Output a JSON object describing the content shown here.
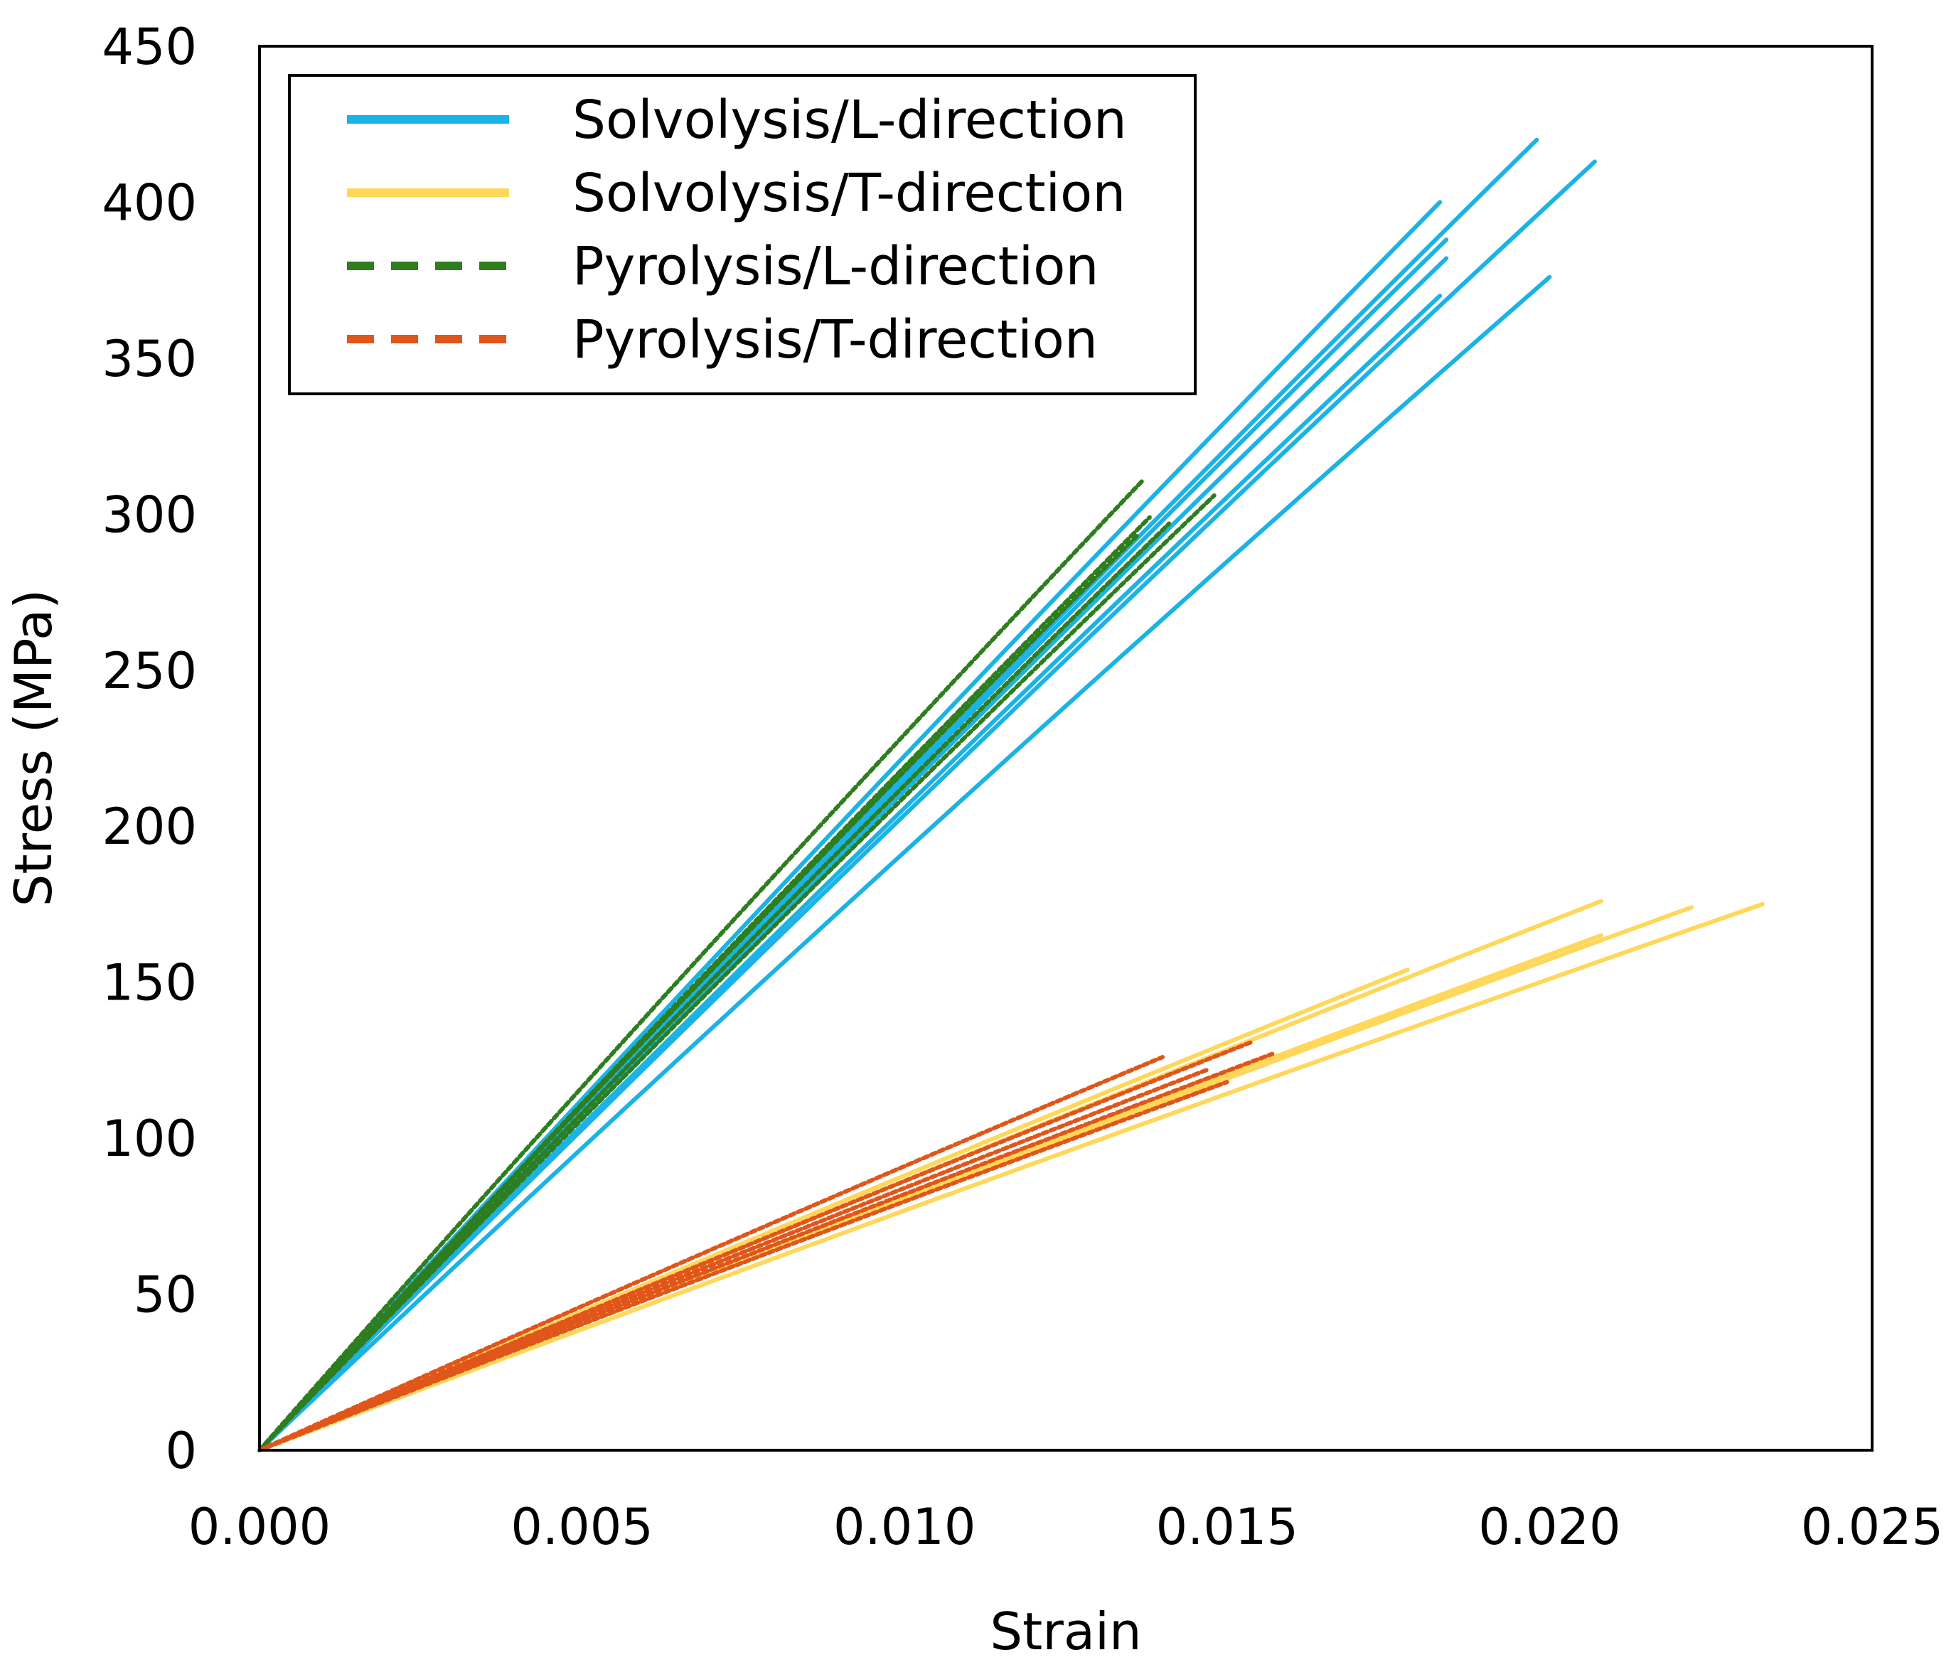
{
  "chart_data": {
    "type": "line",
    "title": "",
    "xlabel": "Strain",
    "ylabel": "Stress (MPa)",
    "xlim": [
      0,
      0.025
    ],
    "ylim": [
      0,
      450
    ],
    "xticks": [
      "0.000",
      "0.005",
      "0.010",
      "0.015",
      "0.020",
      "0.025"
    ],
    "yticks": [
      "0",
      "50",
      "100",
      "150",
      "200",
      "250",
      "300",
      "350",
      "400",
      "450"
    ],
    "grid": false,
    "legend_position": "top-left",
    "series": [
      {
        "name": "Solvolysis/L-direction",
        "color": "#1BB3E6",
        "style": "solid",
        "curves": [
          {
            "strain_end": 0.0183,
            "stress_end": 400
          },
          {
            "strain_end": 0.0198,
            "stress_end": 420
          },
          {
            "strain_end": 0.0207,
            "stress_end": 413
          },
          {
            "strain_end": 0.0184,
            "stress_end": 388
          },
          {
            "strain_end": 0.0184,
            "stress_end": 382
          },
          {
            "strain_end": 0.0183,
            "stress_end": 370
          },
          {
            "strain_end": 0.02,
            "stress_end": 376
          }
        ]
      },
      {
        "name": "Solvolysis/T-direction",
        "color": "#FFD75A",
        "style": "solid",
        "curves": [
          {
            "strain_end": 0.0208,
            "stress_end": 176
          },
          {
            "strain_end": 0.0222,
            "stress_end": 174
          },
          {
            "strain_end": 0.0233,
            "stress_end": 175
          },
          {
            "strain_end": 0.0208,
            "stress_end": 165
          },
          {
            "strain_end": 0.0178,
            "stress_end": 154
          }
        ]
      },
      {
        "name": "Pyrolysis/L-direction",
        "color": "#2E7D1E",
        "style": "dashed",
        "curves": [
          {
            "strain_end": 0.0137,
            "stress_end": 311
          },
          {
            "strain_end": 0.0138,
            "stress_end": 299
          },
          {
            "strain_end": 0.0148,
            "stress_end": 306
          },
          {
            "strain_end": 0.0141,
            "stress_end": 297
          },
          {
            "strain_end": 0.0136,
            "stress_end": 293
          }
        ]
      },
      {
        "name": "Pyrolysis/T-direction",
        "color": "#E0561A",
        "style": "dashed",
        "curves": [
          {
            "strain_end": 0.014,
            "stress_end": 126
          },
          {
            "strain_end": 0.0154,
            "stress_end": 131
          },
          {
            "strain_end": 0.0157,
            "stress_end": 127
          },
          {
            "strain_end": 0.0147,
            "stress_end": 122
          },
          {
            "strain_end": 0.015,
            "stress_end": 118
          }
        ]
      }
    ]
  }
}
